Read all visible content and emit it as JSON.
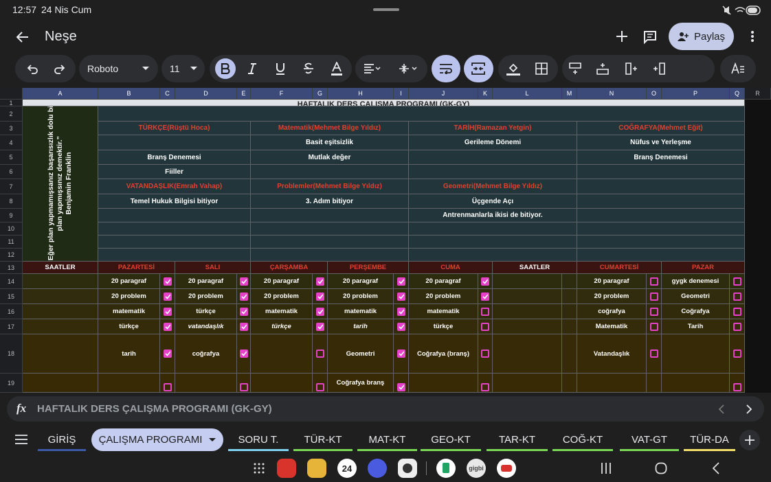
{
  "status_bar": {
    "time": "12:57",
    "date": "24 Nis Cum"
  },
  "app_bar": {
    "title": "Neşe",
    "share": "Paylaş"
  },
  "toolbar": {
    "font": "Roboto",
    "font_size": "11"
  },
  "sheet": {
    "columns": [
      "A",
      "B",
      "C",
      "D",
      "E",
      "F",
      "G",
      "H",
      "I",
      "J",
      "K",
      "L",
      "M",
      "N",
      "O",
      "P",
      "Q",
      "R"
    ],
    "rows": [
      "1",
      "2",
      "3",
      "4",
      "5",
      "6",
      "7",
      "8",
      "9",
      "10",
      "11",
      "12",
      "13",
      "14",
      "15",
      "16",
      "17",
      "18",
      "19"
    ],
    "title": "HAFTALIK DERS ÇALIŞMA PROGRAMI (GK-GY)",
    "quote": [
      "“Eğer plan yapmamışsanız başarısızlık dolu bir",
      "plan yapmışsınız demektir.”",
      "Benjamin Franklin"
    ],
    "subjects": [
      {
        "style": "header",
        "cells": [
          "TÜRKÇE(Rüştü Hoca)",
          "Matematik(Mehmet Bilge Yıldız)",
          "TARİH(Ramazan Yetgin)",
          "COĞRAFYA(Mehmet Eğit)"
        ]
      },
      {
        "style": "body",
        "cells": [
          null,
          "Basit eşitsizlik",
          "Gerileme Dönemi",
          "Nüfus ve Yerleşme"
        ]
      },
      {
        "style": "body",
        "cells": [
          "Branş Denemesi",
          "Mutlak değer",
          null,
          "Branş Denemesi"
        ]
      },
      {
        "style": "body",
        "cells": [
          "Fiiller",
          null,
          null,
          null
        ]
      },
      {
        "style": "header",
        "cells": [
          "VATANDAŞLIK(Emrah Vahap)",
          "Problemler(Mehmet Bilge Yıldız)",
          "Geometri(Mehmet Bilge Yıldız)",
          null
        ]
      },
      {
        "style": "body",
        "cells": [
          "Temel Hukuk Bilgisi  bitiyor",
          "3. Adım bitiyor",
          "Üçgende Açı",
          null
        ]
      },
      {
        "style": "body",
        "cells": [
          null,
          null,
          "Antrenmanlarla ikisi de bitiyor.",
          null
        ]
      },
      {
        "style": "body",
        "cells": [
          null,
          null,
          null,
          null
        ]
      },
      {
        "style": "body",
        "cells": [
          null,
          null,
          null,
          null
        ]
      },
      {
        "style": "body",
        "cells": [
          null,
          null,
          null,
          null
        ]
      }
    ],
    "schedule_header": [
      {
        "text": "SAATLER",
        "style": "time"
      },
      {
        "text": "PAZARTESİ",
        "style": "day"
      },
      {
        "text": "SALI",
        "style": "day"
      },
      {
        "text": "ÇARŞAMBA",
        "style": "day"
      },
      {
        "text": "PERŞEMBE",
        "style": "day"
      },
      {
        "text": "CUMA",
        "style": "day"
      },
      {
        "text": "SAATLER",
        "style": "time"
      },
      {
        "text": "CUMARTESİ",
        "style": "day"
      },
      {
        "text": "PAZAR",
        "style": "day"
      }
    ],
    "schedule": [
      [
        {
          "text": "20 paragraf",
          "checked": true
        },
        {
          "text": "20 paragraf",
          "checked": true
        },
        {
          "text": "20 paragraf",
          "checked": true
        },
        {
          "text": "20 paragraf",
          "checked": true
        },
        {
          "text": "20 paragraf",
          "checked": true
        },
        {
          "text": "20 paragraf",
          "checked": false
        },
        {
          "text": "gygk denemesi",
          "checked": false
        }
      ],
      [
        {
          "text": "20 problem",
          "checked": true
        },
        {
          "text": "20 problem",
          "checked": true
        },
        {
          "text": "20 problem",
          "checked": true
        },
        {
          "text": "20 problem",
          "checked": true
        },
        {
          "text": "20 problem",
          "checked": true
        },
        {
          "text": "20 problem",
          "checked": false
        },
        {
          "text": "Geometri",
          "checked": false
        }
      ],
      [
        {
          "text": "matematik",
          "checked": true
        },
        {
          "text": "türkçe",
          "checked": true
        },
        {
          "text": "matematik",
          "checked": true
        },
        {
          "text": "matematik",
          "checked": true
        },
        {
          "text": "matematik",
          "checked": false
        },
        {
          "text": "coğrafya",
          "checked": false
        },
        {
          "text": "Coğrafya",
          "checked": false
        }
      ],
      [
        {
          "text": "türkçe",
          "checked": true
        },
        {
          "text": "vatandaşlık",
          "checked": true,
          "italic": true
        },
        {
          "text": "türkçe",
          "checked": true,
          "italic": true
        },
        {
          "text": "tarih",
          "checked": true,
          "italic": true
        },
        {
          "text": "türkçe",
          "checked": false
        },
        {
          "text": "Matematik",
          "checked": false
        },
        {
          "text": "Tarih",
          "checked": false
        }
      ],
      [
        {
          "text": "tarih",
          "checked": true
        },
        {
          "text": "coğrafya",
          "checked": true
        },
        {
          "text": null,
          "checked": false
        },
        {
          "text": "Geometri",
          "checked": true
        },
        {
          "text": "Coğrafya (branş)",
          "checked": false
        },
        {
          "text": "Vatandaşlık",
          "checked": false
        },
        {
          "text": null,
          "checked": false
        }
      ],
      [
        {
          "text": null,
          "checked": false
        },
        {
          "text": null,
          "checked": false
        },
        {
          "text": null,
          "checked": false
        },
        {
          "text": "Coğrafya branş",
          "checked": true
        },
        {
          "text": null,
          "checked": false
        },
        {
          "text": null,
          "checked": null
        },
        {
          "text": null,
          "checked": false
        }
      ]
    ]
  },
  "formula_bar": {
    "icon": "fx",
    "text": "HAFTALIK DERS ÇALIŞMA PROGRAMI (GK-GY)"
  },
  "tabs": [
    {
      "name": "GİRİŞ",
      "color": "#3d5aa8"
    },
    {
      "name": "ÇALIŞMA PROGRAMI",
      "active": true
    },
    {
      "name": "SORU T.",
      "color": "#7fd3ee"
    },
    {
      "name": "TÜR-KT",
      "color": "#7ad854"
    },
    {
      "name": "MAT-KT",
      "color": "#7ad854"
    },
    {
      "name": "GEO-KT",
      "color": "#7ad854"
    },
    {
      "name": "TAR-KT",
      "color": "#7ad854"
    },
    {
      "name": "COĞ-KT",
      "color": "#7ad854"
    },
    {
      "name": "VAT-GT",
      "color": "#7ad854"
    },
    {
      "name": "TÜR-DA",
      "color": "#f3e06a"
    }
  ],
  "dock": {
    "calendar_day": "24",
    "gigbi": "gigbi"
  }
}
